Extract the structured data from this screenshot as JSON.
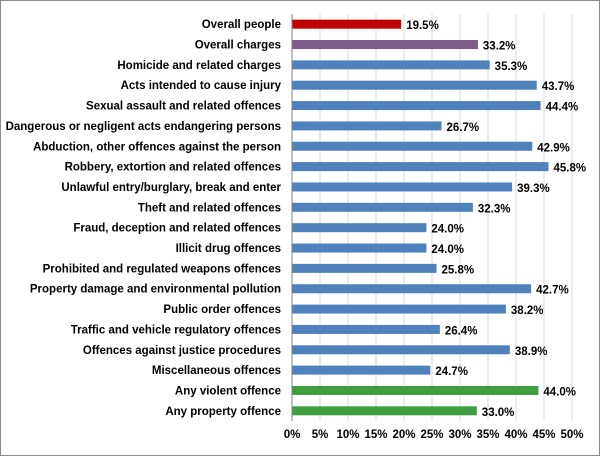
{
  "chart_data": {
    "type": "bar",
    "orientation": "horizontal",
    "title": "",
    "xlabel": "",
    "ylabel": "",
    "xlim": [
      0,
      50
    ],
    "tick_values": [
      0,
      5,
      10,
      15,
      20,
      25,
      30,
      35,
      40,
      45,
      50
    ],
    "tick_labels": [
      "0%",
      "5%",
      "10%",
      "15%",
      "20%",
      "25%",
      "30%",
      "35%",
      "40%",
      "45%",
      "50%"
    ],
    "grid": true,
    "legend": "none",
    "categories": [
      "Overall people",
      "Overall charges",
      "Homicide and related charges",
      "Acts intended to cause injury",
      "Sexual assault and related offences",
      "Dangerous or negligent acts endangering persons",
      "Abduction, other offences against the person",
      "Robbery, extortion and related offences",
      "Unlawful entry/burglary, break and enter",
      "Theft and related offences",
      "Fraud, deception and related offences",
      "Illicit drug offences",
      "Prohibited and regulated weapons offences",
      "Property damage and environmental pollution",
      "Public order offences",
      "Traffic and vehicle regulatory offences",
      "Offences against justice procedures",
      "Miscellaneous offences",
      "Any violent offence",
      "Any property offence"
    ],
    "values": [
      19.5,
      33.2,
      35.3,
      43.7,
      44.4,
      26.7,
      42.9,
      45.8,
      39.3,
      32.3,
      24.0,
      24.0,
      25.8,
      42.7,
      38.2,
      26.4,
      38.9,
      24.7,
      44.0,
      33.0
    ],
    "value_labels": [
      "19.5%",
      "33.2%",
      "35.3%",
      "43.7%",
      "44.4%",
      "26.7%",
      "42.9%",
      "45.8%",
      "39.3%",
      "32.3%",
      "24.0%",
      "24.0%",
      "25.8%",
      "42.7%",
      "38.2%",
      "26.4%",
      "38.9%",
      "24.7%",
      "44.0%",
      "33.0%"
    ],
    "bar_colors": [
      "#c00000",
      "#7b5a8c",
      "#4f81bd",
      "#4f81bd",
      "#4f81bd",
      "#4f81bd",
      "#4f81bd",
      "#4f81bd",
      "#4f81bd",
      "#4f81bd",
      "#4f81bd",
      "#4f81bd",
      "#4f81bd",
      "#4f81bd",
      "#4f81bd",
      "#4f81bd",
      "#4f81bd",
      "#4f81bd",
      "#3f9f3f",
      "#3f9f3f"
    ]
  }
}
